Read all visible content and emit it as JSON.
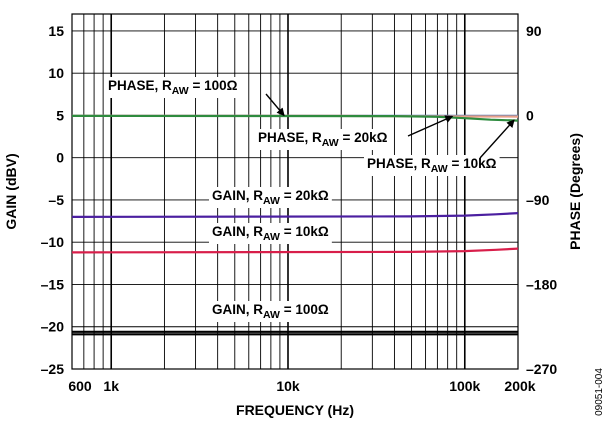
{
  "chart_data": {
    "type": "line",
    "xlabel": "FREQUENCY (Hz)",
    "ylabel": "GAIN (dBV)",
    "y2label": "PHASE (Degrees)",
    "xscale": "log",
    "xlim": [
      600,
      200000
    ],
    "ylim": [
      -25,
      17
    ],
    "y2lim": [
      -270,
      108
    ],
    "grid": true,
    "xticks": [
      {
        "v": 600,
        "label": "600"
      },
      {
        "v": 1000,
        "label": "1k"
      },
      {
        "v": 10000,
        "label": "10k"
      },
      {
        "v": 100000,
        "label": "100k"
      },
      {
        "v": 200000,
        "label": "200k"
      }
    ],
    "yticks": [
      {
        "v": 15,
        "label": "15"
      },
      {
        "v": 10,
        "label": "10"
      },
      {
        "v": 5,
        "label": "5"
      },
      {
        "v": 0,
        "label": "0"
      },
      {
        "v": -5,
        "label": "–5"
      },
      {
        "v": -10,
        "label": "–10"
      },
      {
        "v": -15,
        "label": "–15"
      },
      {
        "v": -20,
        "label": "–20"
      },
      {
        "v": -25,
        "label": "–25"
      }
    ],
    "y2ticks": [
      {
        "v": 90,
        "label": "90"
      },
      {
        "v": 0,
        "label": "0"
      },
      {
        "v": -90,
        "label": "–90"
      },
      {
        "v": -180,
        "label": "–180"
      },
      {
        "v": -270,
        "label": "–270"
      }
    ],
    "series": [
      {
        "axis": "y2",
        "color": "#5a7fb5",
        "x": [
          600,
          10000,
          200000
        ],
        "y": [
          -0.5,
          -0.4,
          -0.5
        ]
      },
      {
        "axis": "y2",
        "color": "#e8a08a",
        "x": [
          600,
          20000,
          60000,
          80000,
          200000
        ],
        "y": [
          -0.5,
          -0.5,
          -0.9,
          -1.1,
          -1.3
        ]
      },
      {
        "axis": "y2",
        "color": "#2e8b3e",
        "x": [
          600,
          40000,
          70000,
          100000,
          140000,
          200000
        ],
        "y": [
          -0.5,
          -0.7,
          -1.5,
          -3.0,
          -4.5,
          -5.5
        ]
      },
      {
        "axis": "y",
        "color": "#4b1fa0",
        "x": [
          600,
          50000,
          100000,
          150000,
          200000
        ],
        "y": [
          -7.0,
          -6.95,
          -6.85,
          -6.7,
          -6.55
        ]
      },
      {
        "axis": "y",
        "color": "#d81e4a",
        "x": [
          600,
          50000,
          100000,
          150000,
          200000
        ],
        "y": [
          -11.2,
          -11.15,
          -11.05,
          -10.9,
          -10.75
        ]
      },
      {
        "axis": "y",
        "color": "#000000",
        "x": [
          600,
          200000
        ],
        "y": [
          -20.6,
          -20.6
        ]
      },
      {
        "axis": "y",
        "color": "#000000",
        "x": [
          600,
          200000
        ],
        "y": [
          -20.9,
          -20.9
        ]
      }
    ],
    "annotations": [
      {
        "label": "PHASE, R",
        "sub": "AW",
        "rest": " = 100Ω",
        "arrow_to": [
          9500,
          0
        ]
      },
      {
        "label": "PHASE, R",
        "sub": "AW",
        "rest": " = 20kΩ",
        "arrow_to": [
          85000,
          -1
        ]
      },
      {
        "label": "PHASE, R",
        "sub": "AW",
        "rest": " = 10kΩ",
        "arrow_to": [
          190000,
          -5
        ]
      },
      {
        "label": "GAIN, R",
        "sub": "AW",
        "rest": " = 20kΩ"
      },
      {
        "label": "GAIN, R",
        "sub": "AW",
        "rest": " = 10kΩ"
      },
      {
        "label": "GAIN, R",
        "sub": "AW",
        "rest": " = 100Ω"
      }
    ]
  },
  "figure_id": "09051-004"
}
